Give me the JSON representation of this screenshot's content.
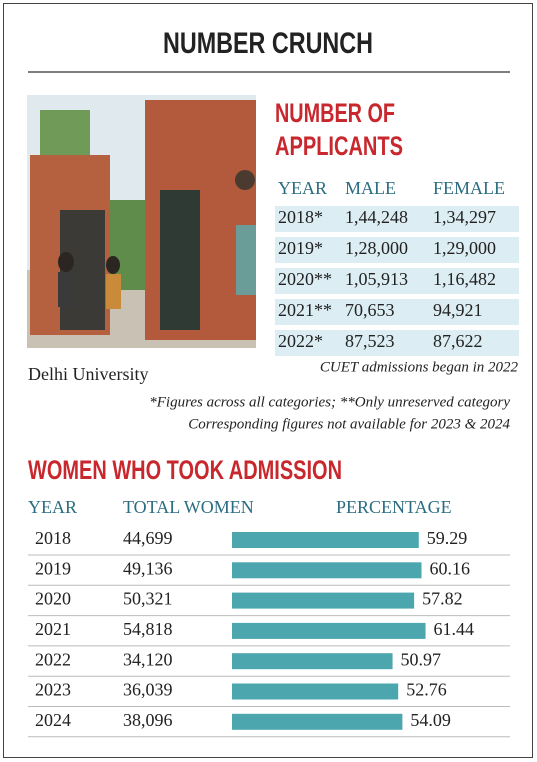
{
  "title": "NUMBER CRUNCH",
  "photo_caption": "Delhi University",
  "applicants": {
    "title_lines": [
      "NUMBER OF",
      "APPLICANTS"
    ],
    "columns": [
      "YEAR",
      "MALE",
      "FEMALE"
    ],
    "rows": [
      [
        "2018*",
        "1,44,248",
        "1,34,297"
      ],
      [
        "2019*",
        "1,28,000",
        "1,29,000"
      ],
      [
        "2020**",
        "1,05,913",
        "1,16,482"
      ],
      [
        "2021**",
        "70,653",
        "94,921"
      ],
      [
        "2022*",
        "87,523",
        "87,622"
      ]
    ],
    "note": "CUET admissions began in 2022",
    "footnotes": [
      "*Figures across all categories; **Only unreserved category",
      "Corresponding figures not available for 2023 & 2024"
    ]
  },
  "chart_data": {
    "type": "bar",
    "title": "WOMEN WHO TOOK ADMISSION",
    "category_header": "YEAR",
    "categories": [
      "2018",
      "2019",
      "2020",
      "2021",
      "2022",
      "2023",
      "2024"
    ],
    "series": [
      {
        "name": "TOTAL WOMEN",
        "values": [
          44699,
          49136,
          50321,
          54818,
          34120,
          36039,
          38096
        ],
        "value_labels": [
          "44,699",
          "49,136",
          "50,321",
          "54,818",
          "34,120",
          "36,039",
          "38,096"
        ]
      },
      {
        "name": "PERCENTAGE",
        "color": "#4ba6ae",
        "values": [
          59.29,
          60.16,
          57.82,
          61.44,
          50.97,
          52.76,
          54.09
        ]
      }
    ]
  }
}
